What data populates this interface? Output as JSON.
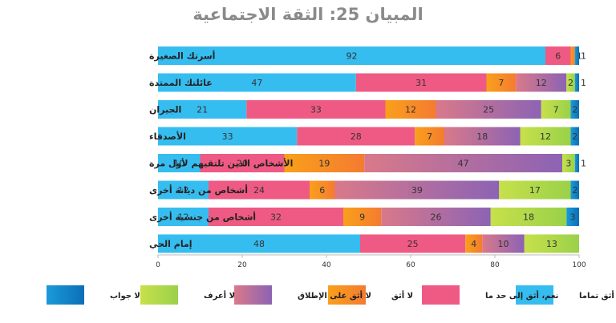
{
  "chart_data": {
    "type": "bar",
    "orientation": "horizontal",
    "stacked": true,
    "title": "المبيان 25: الثقة الاجتماعية",
    "categories": [
      "أسرتك الصغيرة",
      "عائلتك الممتدة",
      "الجيران",
      "الأصدقاء",
      "الأشخاص الذين تلتقيهم لأول مرة",
      "أشخاص من ديانة أخرى",
      "أشخاص من جنسية أخرى",
      "إمام الحي"
    ],
    "series": [
      {
        "name": "نعم، أثق تماما",
        "color": "#36bdf0",
        "values": [
          92,
          47,
          21,
          33,
          10,
          12,
          12,
          48
        ]
      },
      {
        "name": "نعم، أثق إلى حد ما",
        "color": "#ef5a84",
        "values": [
          6,
          31,
          33,
          28,
          20,
          24,
          32,
          25
        ]
      },
      {
        "name": "لا أثق",
        "color": "#f9a01b",
        "color2": "#f47b30",
        "values": [
          1,
          7,
          12,
          7,
          19,
          6,
          9,
          4
        ]
      },
      {
        "name": "لا أثق على الإطلاق",
        "color": "#d9798a",
        "color2": "#8c63b4",
        "values": [
          0,
          12,
          25,
          18,
          47,
          39,
          26,
          10
        ]
      },
      {
        "name": "لا أعرف",
        "color": "#c7e04a",
        "color2": "#9ad14a",
        "values": [
          0,
          2,
          7,
          12,
          3,
          17,
          18,
          13
        ]
      },
      {
        "name": "لا جواب",
        "color": "#1a9bd7",
        "color2": "#0b6fb8",
        "values": [
          1,
          1,
          2,
          2,
          1,
          2,
          3,
          0
        ]
      }
    ],
    "xlim": [
      0,
      100
    ],
    "xticks": [
      0,
      20,
      40,
      60,
      80,
      100
    ],
    "legend_position": "bottom",
    "xlabel": "",
    "ylabel": ""
  }
}
